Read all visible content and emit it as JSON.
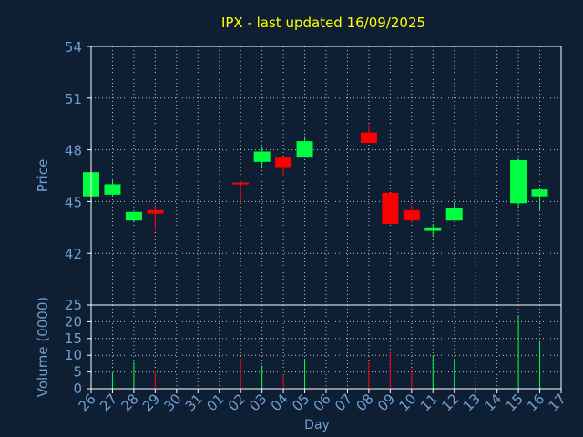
{
  "chart_data": {
    "type": "candlestick",
    "title": "IPX - last updated 16/09/2025",
    "xlabel": "Day",
    "ylabel_price": "Price",
    "ylabel_volume": "Volume (0000)",
    "x_ticks": [
      "26",
      "27",
      "28",
      "29",
      "30",
      "31",
      "01",
      "02",
      "03",
      "04",
      "05",
      "06",
      "07",
      "08",
      "09",
      "10",
      "11",
      "12",
      "13",
      "14",
      "15",
      "16",
      "17"
    ],
    "price_ticks": [
      42,
      45,
      48,
      51,
      54
    ],
    "price_ylim": [
      39.0,
      54.0
    ],
    "volume_ticks": [
      0,
      5,
      10,
      15,
      20,
      25
    ],
    "volume_ylim": [
      0,
      25
    ],
    "grid": true,
    "colors": {
      "background": "#0f1f33",
      "axis": "#ffffff",
      "grid": "#c0c0c0",
      "title": "#ffff00",
      "label": "#6f9fcf",
      "up": "#00ff40",
      "down": "#ff0000"
    },
    "candles": [
      {
        "day": "26",
        "open": 45.3,
        "high": 46.7,
        "low": 45.3,
        "close": 46.7
      },
      {
        "day": "27",
        "open": 45.4,
        "high": 46.3,
        "low": 45.3,
        "close": 46.0
      },
      {
        "day": "28",
        "open": 43.9,
        "high": 44.4,
        "low": 43.8,
        "close": 44.4
      },
      {
        "day": "29",
        "open": 44.5,
        "high": 44.8,
        "low": 43.3,
        "close": 44.3
      },
      {
        "day": "02",
        "open": 46.1,
        "high": 46.2,
        "low": 45.0,
        "close": 46.0
      },
      {
        "day": "03",
        "open": 47.3,
        "high": 48.2,
        "low": 47.0,
        "close": 47.9
      },
      {
        "day": "04",
        "open": 47.6,
        "high": 47.6,
        "low": 46.5,
        "close": 47.0
      },
      {
        "day": "05",
        "open": 47.6,
        "high": 48.8,
        "low": 47.6,
        "close": 48.5
      },
      {
        "day": "08",
        "open": 49.0,
        "high": 49.5,
        "low": 48.4,
        "close": 48.4
      },
      {
        "day": "09",
        "open": 45.5,
        "high": 45.5,
        "low": 43.7,
        "close": 43.7
      },
      {
        "day": "10",
        "open": 44.5,
        "high": 44.8,
        "low": 43.8,
        "close": 43.9
      },
      {
        "day": "11",
        "open": 43.3,
        "high": 43.7,
        "low": 43.0,
        "close": 43.5
      },
      {
        "day": "12",
        "open": 43.9,
        "high": 45.0,
        "low": 43.9,
        "close": 44.6
      },
      {
        "day": "15",
        "open": 44.9,
        "high": 47.5,
        "low": 44.6,
        "close": 47.4
      },
      {
        "day": "16",
        "open": 45.3,
        "high": 45.8,
        "low": 44.5,
        "close": 45.7
      }
    ],
    "volume": [
      {
        "day": "27",
        "value": 5,
        "dir": "up"
      },
      {
        "day": "28",
        "value": 8,
        "dir": "up"
      },
      {
        "day": "29",
        "value": 5,
        "dir": "down"
      },
      {
        "day": "02",
        "value": 9,
        "dir": "down"
      },
      {
        "day": "03",
        "value": 7,
        "dir": "up"
      },
      {
        "day": "04",
        "value": 4,
        "dir": "down"
      },
      {
        "day": "05",
        "value": 9,
        "dir": "up"
      },
      {
        "day": "08",
        "value": 8,
        "dir": "down"
      },
      {
        "day": "09",
        "value": 11,
        "dir": "down"
      },
      {
        "day": "10",
        "value": 6,
        "dir": "down"
      },
      {
        "day": "11",
        "value": 10,
        "dir": "up"
      },
      {
        "day": "12",
        "value": 9,
        "dir": "up"
      },
      {
        "day": "15",
        "value": 22,
        "dir": "up"
      },
      {
        "day": "16",
        "value": 14,
        "dir": "up"
      }
    ]
  }
}
